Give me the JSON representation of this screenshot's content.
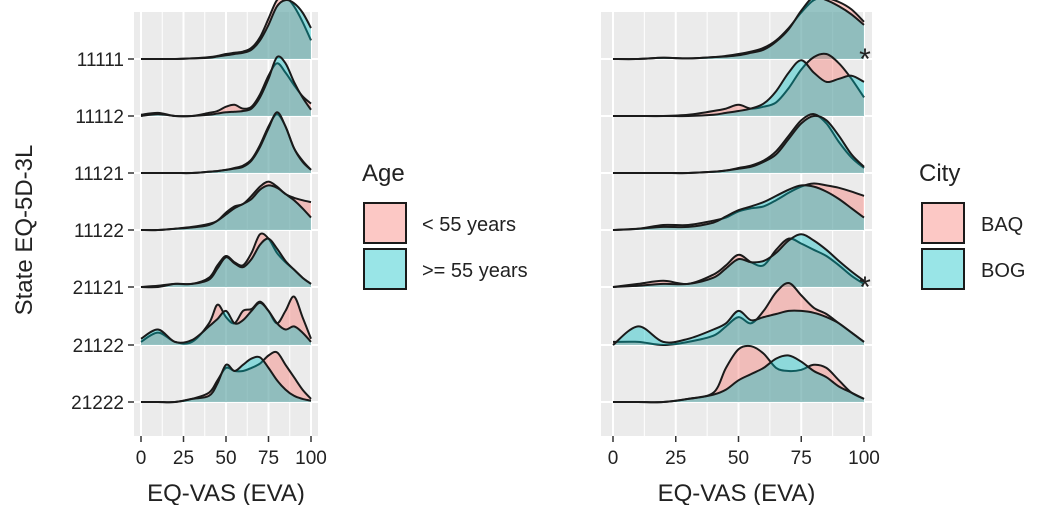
{
  "colors": {
    "panel_bg": "#ebebeb",
    "grid": "#ffffff",
    "series_a": "#f8766d",
    "series_b": "#00bfc4",
    "outline": "#1a1a1a"
  },
  "y_title": "State EQ-5D-3L",
  "legend_age": {
    "title": "Age",
    "items": [
      "< 55 years",
      ">= 55 years"
    ]
  },
  "legend_city": {
    "title": "City",
    "items": [
      "BAQ",
      "BOG"
    ]
  },
  "chart_data": [
    {
      "type": "area",
      "subtype": "ridgeline-density",
      "xlabel": "EQ-VAS (EVA)",
      "ylabel": "State EQ-5D-3L",
      "xlim": [
        0,
        100
      ],
      "xticks": [
        0,
        25,
        50,
        75,
        100
      ],
      "categories": [
        "11111",
        "11112",
        "11121",
        "11122",
        "21121",
        "21122",
        "21222"
      ],
      "legend_title": "Age",
      "legend_position": "right",
      "grid": true,
      "x": [
        0,
        10,
        20,
        30,
        40,
        45,
        50,
        55,
        60,
        65,
        70,
        75,
        80,
        85,
        90,
        95,
        100
      ],
      "series": [
        {
          "name": "< 55 years",
          "values": [
            [
              0.0,
              0.0,
              0.0,
              0.01,
              0.03,
              0.05,
              0.08,
              0.1,
              0.12,
              0.18,
              0.35,
              0.65,
              0.95,
              1.0,
              0.85,
              0.6,
              0.3
            ],
            [
              0.02,
              0.05,
              0.0,
              0.0,
              0.05,
              0.08,
              0.15,
              0.18,
              0.12,
              0.15,
              0.35,
              0.65,
              0.85,
              0.7,
              0.5,
              0.32,
              0.2
            ],
            [
              0.0,
              0.0,
              0.0,
              0.0,
              0.02,
              0.03,
              0.05,
              0.08,
              0.12,
              0.22,
              0.45,
              0.75,
              0.95,
              0.75,
              0.4,
              0.2,
              0.05
            ],
            [
              0.0,
              0.0,
              0.02,
              0.05,
              0.1,
              0.15,
              0.28,
              0.38,
              0.42,
              0.55,
              0.7,
              0.78,
              0.7,
              0.58,
              0.52,
              0.48,
              0.45
            ],
            [
              0.0,
              0.02,
              0.05,
              0.05,
              0.15,
              0.35,
              0.5,
              0.4,
              0.35,
              0.55,
              0.85,
              0.78,
              0.55,
              0.4,
              0.28,
              0.15,
              0.05
            ],
            [
              0.05,
              0.2,
              0.05,
              0.05,
              0.35,
              0.65,
              0.45,
              0.35,
              0.55,
              0.58,
              0.7,
              0.55,
              0.35,
              0.55,
              0.78,
              0.45,
              0.1
            ],
            [
              0.0,
              0.0,
              0.0,
              0.05,
              0.15,
              0.35,
              0.55,
              0.5,
              0.5,
              0.55,
              0.62,
              0.75,
              0.8,
              0.6,
              0.4,
              0.2,
              0.05
            ]
          ]
        },
        {
          "name": ">= 55 years",
          "values": [
            [
              0.0,
              0.0,
              0.0,
              0.01,
              0.02,
              0.04,
              0.06,
              0.08,
              0.1,
              0.15,
              0.3,
              0.55,
              0.85,
              0.95,
              0.9,
              0.75,
              0.5
            ],
            [
              0.0,
              0.03,
              0.0,
              0.0,
              0.02,
              0.04,
              0.06,
              0.07,
              0.08,
              0.12,
              0.3,
              0.6,
              0.95,
              0.85,
              0.55,
              0.3,
              0.1
            ],
            [
              0.0,
              0.0,
              0.0,
              0.0,
              0.02,
              0.03,
              0.05,
              0.07,
              0.1,
              0.2,
              0.42,
              0.72,
              0.98,
              0.75,
              0.4,
              0.18,
              0.05
            ],
            [
              0.0,
              0.0,
              0.02,
              0.04,
              0.08,
              0.15,
              0.25,
              0.35,
              0.42,
              0.5,
              0.65,
              0.72,
              0.68,
              0.58,
              0.48,
              0.35,
              0.2
            ],
            [
              0.0,
              0.0,
              0.05,
              0.05,
              0.12,
              0.3,
              0.48,
              0.38,
              0.32,
              0.45,
              0.68,
              0.78,
              0.62,
              0.42,
              0.28,
              0.15,
              0.05
            ],
            [
              0.1,
              0.25,
              0.05,
              0.08,
              0.3,
              0.42,
              0.55,
              0.35,
              0.4,
              0.55,
              0.68,
              0.55,
              0.35,
              0.25,
              0.3,
              0.2,
              0.05
            ],
            [
              0.0,
              0.0,
              0.0,
              0.05,
              0.1,
              0.3,
              0.6,
              0.5,
              0.6,
              0.7,
              0.72,
              0.55,
              0.35,
              0.2,
              0.1,
              0.05,
              0.02
            ]
          ]
        }
      ],
      "annotations": []
    },
    {
      "type": "area",
      "subtype": "ridgeline-density",
      "xlabel": "EQ-VAS (EVA)",
      "ylabel": "",
      "xlim": [
        0,
        100
      ],
      "xticks": [
        0,
        25,
        50,
        75,
        100
      ],
      "categories": [
        "11111",
        "11112",
        "11121",
        "11122",
        "21121",
        "21122",
        "21222"
      ],
      "legend_title": "City",
      "legend_position": "right",
      "grid": true,
      "x": [
        0,
        10,
        20,
        30,
        40,
        45,
        50,
        55,
        60,
        65,
        70,
        75,
        80,
        85,
        90,
        95,
        100
      ],
      "series": [
        {
          "name": "BAQ",
          "values": [
            [
              0.0,
              0.0,
              0.02,
              0.01,
              0.03,
              0.05,
              0.08,
              0.12,
              0.18,
              0.3,
              0.5,
              0.75,
              0.95,
              0.98,
              0.92,
              0.8,
              0.6
            ],
            [
              0.0,
              0.0,
              0.0,
              0.02,
              0.08,
              0.12,
              0.18,
              0.12,
              0.15,
              0.22,
              0.45,
              0.75,
              0.95,
              1.0,
              0.85,
              0.6,
              0.3
            ],
            [
              0.0,
              0.0,
              0.0,
              0.0,
              0.02,
              0.04,
              0.08,
              0.12,
              0.2,
              0.35,
              0.6,
              0.85,
              0.95,
              0.8,
              0.5,
              0.25,
              0.08
            ],
            [
              0.0,
              0.02,
              0.08,
              0.08,
              0.15,
              0.2,
              0.3,
              0.35,
              0.38,
              0.48,
              0.6,
              0.7,
              0.75,
              0.72,
              0.68,
              0.62,
              0.55
            ],
            [
              0.0,
              0.05,
              0.1,
              0.05,
              0.2,
              0.35,
              0.52,
              0.4,
              0.35,
              0.6,
              0.78,
              0.7,
              0.6,
              0.5,
              0.35,
              0.18,
              0.05
            ],
            [
              0.05,
              0.05,
              0.0,
              0.05,
              0.15,
              0.3,
              0.45,
              0.35,
              0.55,
              0.85,
              1.0,
              0.8,
              0.6,
              0.5,
              0.35,
              0.2,
              0.05
            ],
            [
              0.0,
              0.0,
              0.0,
              0.05,
              0.15,
              0.55,
              0.85,
              0.9,
              0.78,
              0.55,
              0.5,
              0.52,
              0.6,
              0.55,
              0.35,
              0.15,
              0.05
            ]
          ]
        },
        {
          "name": "BOG",
          "values": [
            [
              0.0,
              0.0,
              0.02,
              0.01,
              0.03,
              0.04,
              0.06,
              0.1,
              0.15,
              0.28,
              0.48,
              0.78,
              1.0,
              0.95,
              0.85,
              0.72,
              0.55
            ],
            [
              0.0,
              0.0,
              0.0,
              0.0,
              0.02,
              0.05,
              0.08,
              0.12,
              0.2,
              0.4,
              0.7,
              0.9,
              0.7,
              0.55,
              0.6,
              0.65,
              0.55
            ],
            [
              0.0,
              0.0,
              0.0,
              0.0,
              0.02,
              0.04,
              0.07,
              0.1,
              0.18,
              0.3,
              0.55,
              0.8,
              0.92,
              0.85,
              0.6,
              0.3,
              0.1
            ],
            [
              0.0,
              0.02,
              0.05,
              0.05,
              0.12,
              0.22,
              0.32,
              0.38,
              0.45,
              0.55,
              0.65,
              0.72,
              0.7,
              0.62,
              0.5,
              0.35,
              0.2
            ],
            [
              0.0,
              0.02,
              0.05,
              0.05,
              0.15,
              0.3,
              0.45,
              0.4,
              0.42,
              0.55,
              0.75,
              0.85,
              0.75,
              0.6,
              0.42,
              0.25,
              0.1
            ],
            [
              0.0,
              0.3,
              0.05,
              0.1,
              0.25,
              0.35,
              0.55,
              0.4,
              0.45,
              0.5,
              0.55,
              0.55,
              0.52,
              0.45,
              0.35,
              0.2,
              0.05
            ],
            [
              0.0,
              0.0,
              0.0,
              0.05,
              0.12,
              0.2,
              0.35,
              0.45,
              0.55,
              0.7,
              0.75,
              0.65,
              0.5,
              0.4,
              0.25,
              0.15,
              0.05
            ]
          ]
        }
      ],
      "annotations": [
        {
          "text": "*",
          "category": "11111"
        },
        {
          "text": "*",
          "category": "21121"
        }
      ]
    }
  ]
}
